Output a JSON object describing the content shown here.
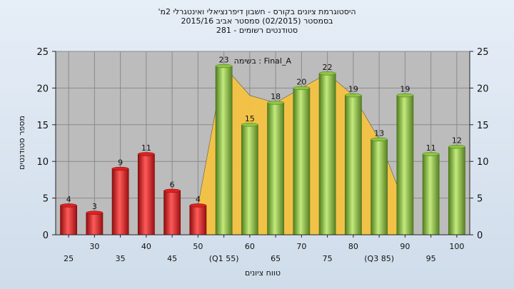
{
  "title_lines": [
    "'היסטוגרמת ציונים בקורס - חשבון דיפרנציאלי ואינטגרלי 2מ",
    "בסמסטר  (02/2015)  סמסטר אביב 2015/16",
    "סטודנטים רשומים - 281"
  ],
  "colors": {
    "plot_bg": "#bcbcbc",
    "grid": "#8a8a8a",
    "fail_bar": "#e02020",
    "pass_bar": "#8cc63f",
    "cumulative_area": "#f5c342"
  },
  "chart_data": {
    "type": "bar",
    "categories": [
      "25",
      "30",
      "35",
      "40",
      "45",
      "50",
      "(Q1 55)",
      "60",
      "65",
      "70",
      "75",
      "80",
      "(Q3 85)",
      "90",
      "95",
      "100"
    ],
    "values": [
      4,
      3,
      9,
      11,
      6,
      4,
      23,
      15,
      18,
      20,
      22,
      19,
      13,
      19,
      11,
      12
    ],
    "fail_count": 6,
    "area_overlay": {
      "from_category": "50",
      "to_category": "90",
      "values": [
        4,
        23,
        19,
        18,
        20,
        22,
        19,
        13,
        4
      ]
    },
    "xlabel": "טווח ציונים",
    "ylabel": "מספר סטודנטים",
    "ylim": [
      0,
      25
    ],
    "yticks": [
      0,
      5,
      10,
      15,
      20,
      25
    ],
    "annotation": "בשימה : Final_A",
    "grid": true,
    "legend": "none"
  }
}
